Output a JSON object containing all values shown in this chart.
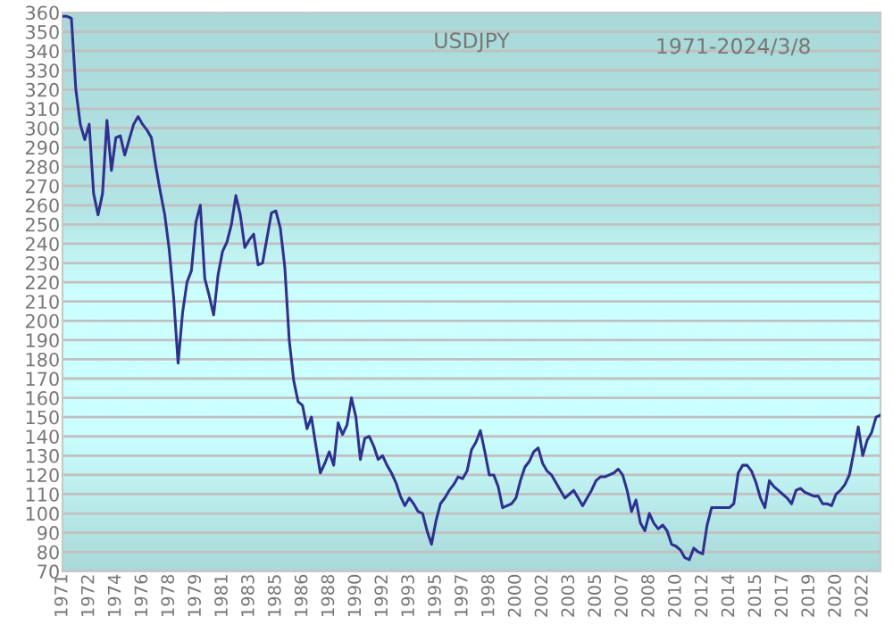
{
  "chart_data": {
    "type": "line",
    "title": "USDJPY",
    "annotations": [
      "1971-2024/3/8"
    ],
    "categories": [
      "1971",
      null,
      null,
      null,
      null,
      null,
      "1972",
      null,
      null,
      null,
      null,
      null,
      "1974",
      null,
      null,
      null,
      null,
      null,
      "1976",
      null,
      null,
      null,
      null,
      null,
      "1978",
      null,
      null,
      null,
      null,
      null,
      "1979",
      null,
      null,
      null,
      null,
      null,
      "1981",
      null,
      null,
      null,
      null,
      null,
      "1983",
      null,
      null,
      null,
      null,
      null,
      "1985",
      null,
      null,
      null,
      null,
      null,
      "1986",
      null,
      null,
      null,
      null,
      null,
      "1988",
      null,
      null,
      null,
      null,
      null,
      "1990",
      null,
      null,
      null,
      null,
      null,
      "1992",
      null,
      null,
      null,
      null,
      null,
      "1993",
      null,
      null,
      null,
      null,
      null,
      "1995",
      null,
      null,
      null,
      null,
      null,
      "1997",
      null,
      null,
      null,
      null,
      null,
      "1998",
      null,
      null,
      null,
      null,
      null,
      "2000",
      null,
      null,
      null,
      null,
      null,
      "2002",
      null,
      null,
      null,
      null,
      null,
      "2003",
      null,
      null,
      null,
      null,
      null,
      "2005",
      null,
      null,
      null,
      null,
      null,
      "2007",
      null,
      null,
      null,
      null,
      null,
      "2008",
      null,
      null,
      null,
      null,
      null,
      "2010",
      null,
      null,
      null,
      null,
      null,
      "2012",
      null,
      null,
      null,
      null,
      null,
      "2014",
      null,
      null,
      null,
      null,
      null,
      "2015",
      null,
      null,
      null,
      null,
      null,
      "2017",
      null,
      null,
      null,
      null,
      null,
      "2019",
      null,
      null,
      null,
      null,
      null,
      "2020",
      null,
      null,
      null,
      null,
      null,
      "2022",
      null,
      null,
      null,
      null
    ],
    "series": [
      {
        "color": "#2e3192",
        "values": [
          358,
          358,
          357,
          320,
          302,
          294,
          302,
          266,
          255,
          266,
          304,
          278,
          295,
          296,
          286,
          294,
          302,
          306,
          302,
          299,
          295,
          280,
          267,
          255,
          237,
          212,
          178,
          204,
          220,
          226,
          251,
          260,
          222,
          213,
          203,
          224,
          236,
          241,
          250,
          265,
          255,
          238,
          242,
          245,
          229,
          230,
          243,
          256,
          257,
          248,
          228,
          190,
          169,
          158,
          156,
          144,
          150,
          135,
          121,
          126,
          132,
          125,
          147,
          141,
          146,
          160,
          150,
          128,
          139,
          140,
          135,
          128,
          130,
          125,
          121,
          116,
          109,
          104,
          108,
          105,
          101,
          100,
          91,
          84,
          96,
          105,
          108,
          112,
          115,
          119,
          118,
          122,
          133,
          137,
          143,
          132,
          120,
          120,
          114,
          103,
          104,
          105,
          108,
          117,
          124,
          127,
          132,
          134,
          126,
          122,
          120,
          116,
          112,
          108,
          110,
          112,
          108,
          104,
          108,
          112,
          117,
          119,
          119,
          120,
          121,
          123,
          120,
          112,
          101,
          107,
          95,
          91,
          100,
          95,
          92,
          94,
          91,
          84,
          83,
          81,
          77,
          76,
          82,
          80,
          79,
          94,
          103,
          103,
          103,
          103,
          103,
          105,
          121,
          125,
          125,
          122,
          116,
          108,
          103,
          117,
          114,
          112,
          110,
          108,
          105,
          112,
          113,
          111,
          110,
          109,
          109,
          105,
          105,
          104,
          110,
          112,
          115,
          120,
          132,
          145,
          130,
          138,
          142,
          150,
          151
        ]
      }
    ],
    "ylim": [
      70,
      360
    ],
    "yticks": [
      70,
      80,
      90,
      100,
      110,
      120,
      130,
      140,
      150,
      160,
      170,
      180,
      190,
      200,
      210,
      220,
      230,
      240,
      250,
      260,
      270,
      280,
      290,
      300,
      310,
      320,
      330,
      340,
      350,
      360
    ],
    "grid": "y",
    "marker": "none",
    "line_style": "solid"
  }
}
